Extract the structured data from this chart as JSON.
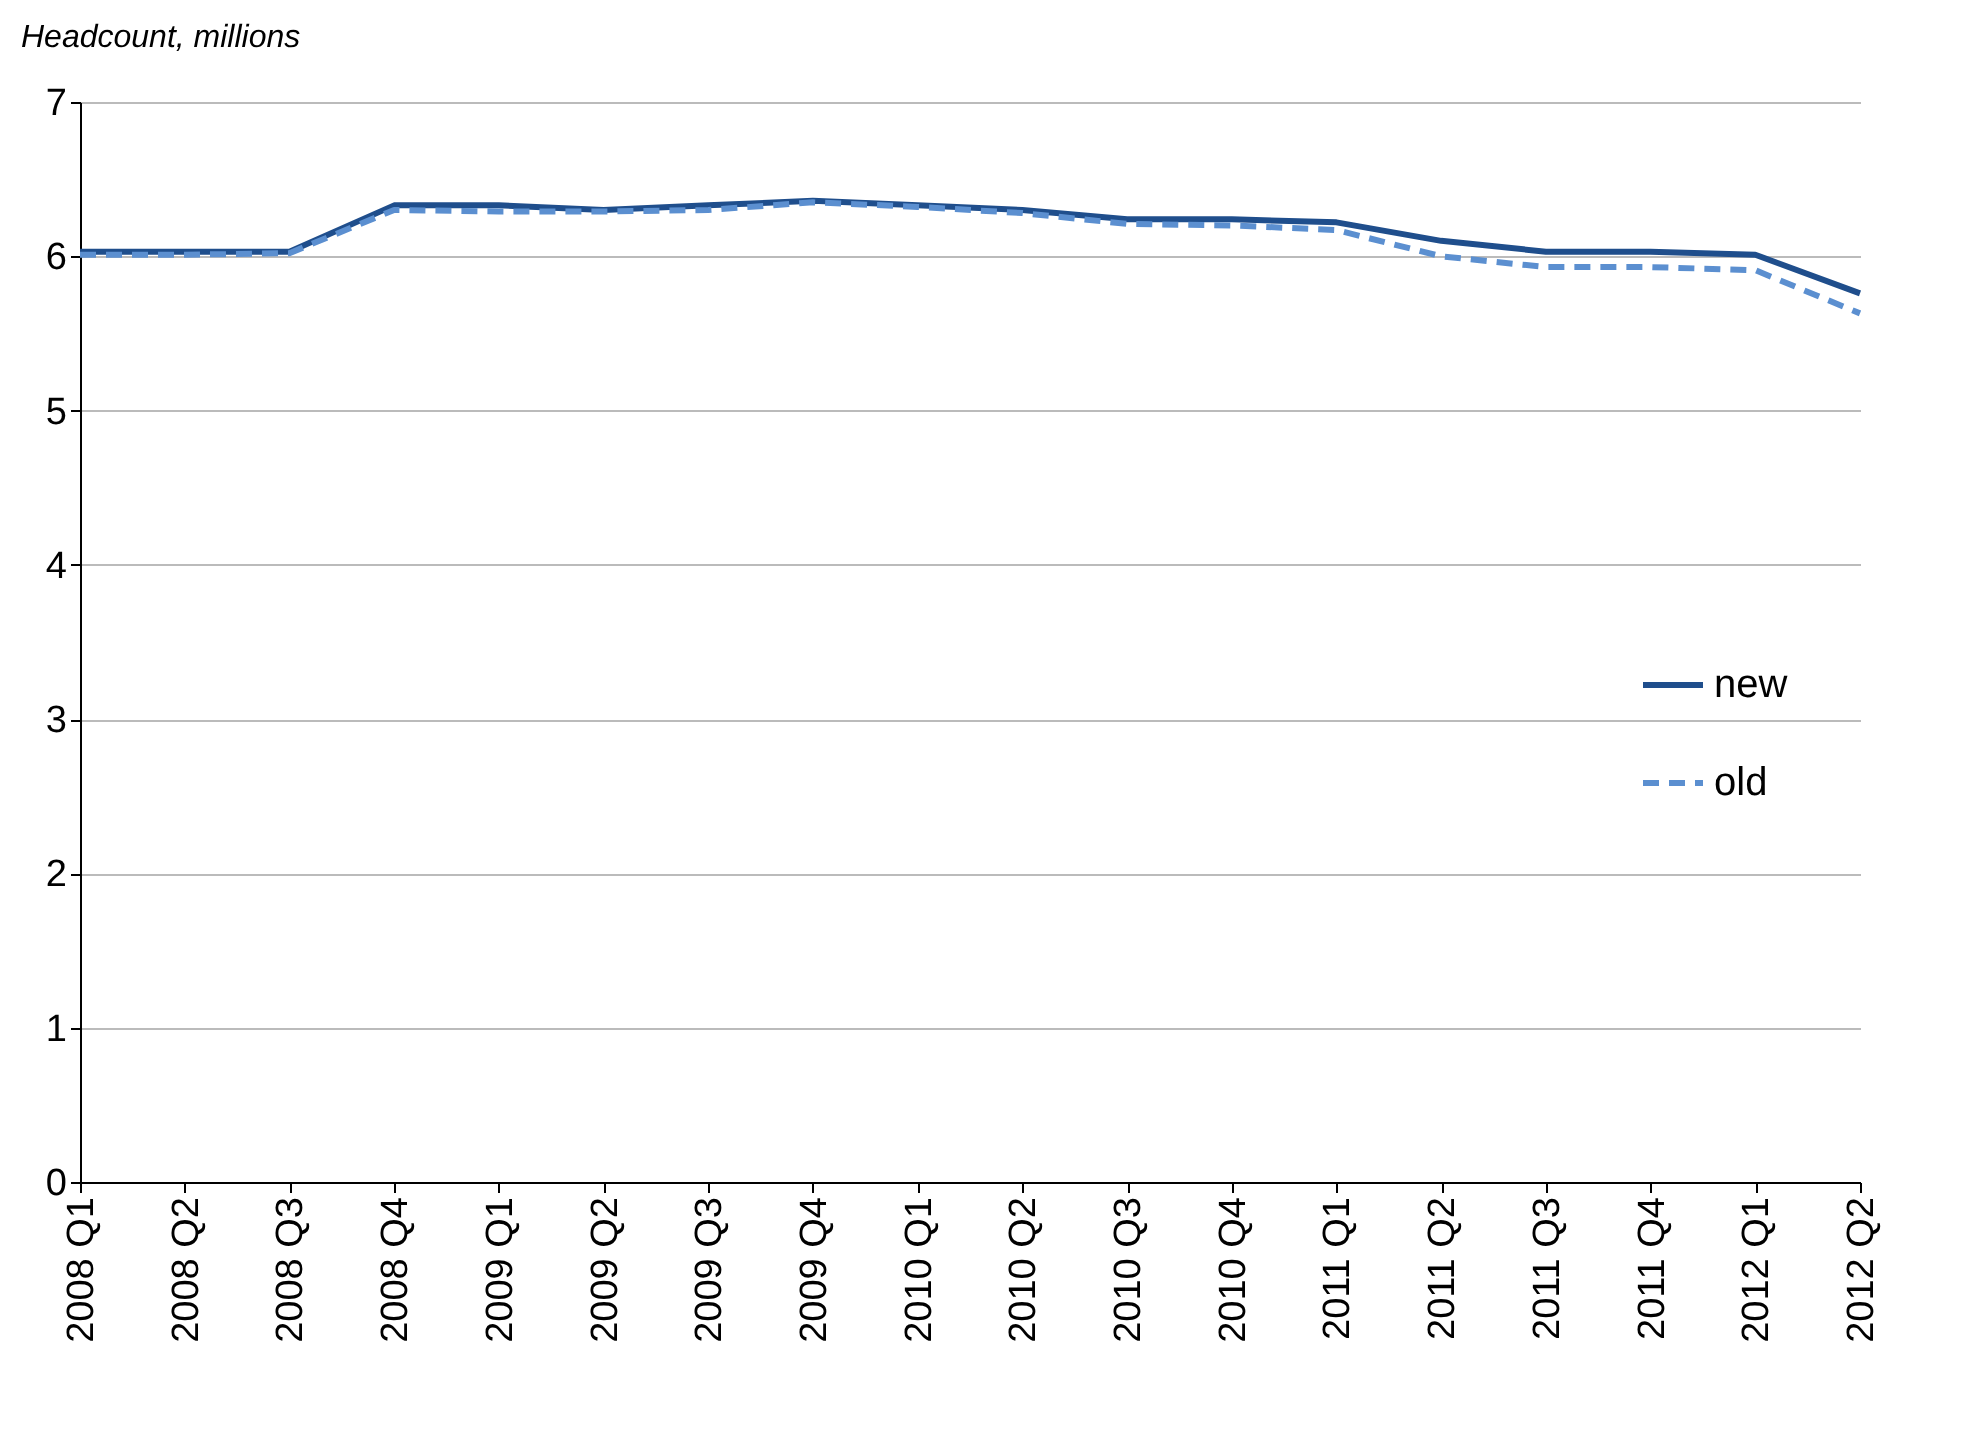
{
  "chart_data": {
    "type": "line",
    "ylabel": "Headcount, millions",
    "categories": [
      "2008 Q1",
      "2008 Q2",
      "2008 Q3",
      "2008 Q4",
      "2009 Q1",
      "2009 Q2",
      "2009 Q3",
      "2009 Q4",
      "2010 Q1",
      "2010 Q2",
      "2010 Q3",
      "2010 Q4",
      "2011 Q1",
      "2011 Q2",
      "2011 Q3",
      "2011 Q4",
      "2012 Q1",
      "2012 Q2"
    ],
    "series": [
      {
        "name": "new",
        "color": "#1f4e8c",
        "line_style": "solid",
        "values": [
          6.03,
          6.03,
          6.03,
          6.33,
          6.33,
          6.3,
          6.33,
          6.36,
          6.33,
          6.3,
          6.24,
          6.24,
          6.22,
          6.1,
          6.03,
          6.03,
          6.01,
          5.76
        ]
      },
      {
        "name": "old",
        "color": "#5b8fd0",
        "line_style": "dashed",
        "values": [
          6.01,
          6.01,
          6.02,
          6.3,
          6.29,
          6.29,
          6.3,
          6.35,
          6.32,
          6.28,
          6.21,
          6.2,
          6.17,
          6.0,
          5.93,
          5.93,
          5.91,
          5.63
        ]
      }
    ],
    "ylim": [
      0,
      7
    ],
    "yticks": [
      0,
      1,
      2,
      3,
      4,
      5,
      6,
      7
    ],
    "grid": "y",
    "legend": "right",
    "marker": "none"
  }
}
